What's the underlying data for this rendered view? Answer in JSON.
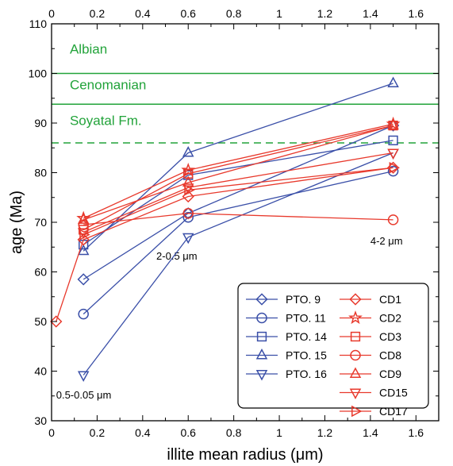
{
  "chart_data": {
    "type": "line",
    "xlabel": "illite mean radius (μm)",
    "ylabel": "age (Ma)",
    "xlim": [
      0,
      1.7
    ],
    "ylim": [
      30,
      110
    ],
    "x_ticks": [
      "0",
      "0.2",
      "0.4",
      "0.6",
      "0.8",
      "1",
      "1.2",
      "1.4",
      "1.6"
    ],
    "x_tick_values": [
      0,
      0.2,
      0.4,
      0.6,
      0.8,
      1.0,
      1.2,
      1.4,
      1.6
    ],
    "y_ticks": [
      "30",
      "40",
      "50",
      "60",
      "70",
      "80",
      "90",
      "100",
      "110"
    ],
    "y_tick_values": [
      30,
      40,
      50,
      60,
      70,
      80,
      90,
      100,
      110
    ],
    "grid": false,
    "legend_placement": "bottom-right",
    "colors": {
      "blue": "#3a4fa8",
      "red": "#e8392c",
      "green": "#22a33a"
    },
    "reference_lines": [
      {
        "y": 100,
        "style": "solid"
      },
      {
        "y": 93.8,
        "style": "solid"
      },
      {
        "y": 86,
        "style": "dashed"
      }
    ],
    "annotations": [
      {
        "text": "Albian",
        "x": 0.08,
        "y": 104,
        "color": "green"
      },
      {
        "text": "Cenomanian",
        "x": 0.08,
        "y": 96.8,
        "color": "green"
      },
      {
        "text": "Soyatal Fm.",
        "x": 0.08,
        "y": 89.6,
        "color": "green"
      },
      {
        "text": "0.5-0.05 μm",
        "x": 0.02,
        "y": 34.5,
        "color": "black"
      },
      {
        "text": "2-0.5 μm",
        "x": 0.46,
        "y": 62.5,
        "color": "black"
      },
      {
        "text": "4-2 μm",
        "x": 1.4,
        "y": 65.5,
        "color": "black"
      }
    ],
    "series": [
      {
        "name": "PTO. 9",
        "color": "blue",
        "marker": "diamond",
        "x": [
          0.14,
          0.6,
          1.5
        ],
        "y": [
          58.5,
          71.8,
          89.5
        ]
      },
      {
        "name": "PTO. 11",
        "color": "blue",
        "marker": "circle",
        "x": [
          0.14,
          0.6,
          1.5
        ],
        "y": [
          51.5,
          71.0,
          80.3
        ]
      },
      {
        "name": "PTO. 14",
        "color": "blue",
        "marker": "square",
        "x": [
          0.14,
          0.6,
          1.5
        ],
        "y": [
          65.5,
          79.5,
          86.5
        ]
      },
      {
        "name": "PTO. 15",
        "color": "blue",
        "marker": "triangle-up",
        "x": [
          0.14,
          0.6,
          1.5
        ],
        "y": [
          64.2,
          84.0,
          98.0
        ]
      },
      {
        "name": "PTO. 16",
        "color": "blue",
        "marker": "triangle-down",
        "x": [
          0.14,
          0.6,
          1.5
        ],
        "y": [
          39.2,
          67.0,
          84.0
        ]
      },
      {
        "name": "CD1",
        "color": "red",
        "marker": "diamond",
        "x": [
          0.02,
          0.14,
          0.6,
          1.5
        ],
        "y": [
          50.0,
          66.5,
          75.2,
          81.0
        ]
      },
      {
        "name": "CD2",
        "color": "red",
        "marker": "star",
        "x": [
          0.14,
          0.6,
          1.5
        ],
        "y": [
          70.8,
          80.5,
          89.8
        ]
      },
      {
        "name": "CD3",
        "color": "red",
        "marker": "square",
        "x": [
          0.14,
          0.6,
          1.5
        ],
        "y": [
          68.5,
          79.8,
          89.5
        ]
      },
      {
        "name": "CD8",
        "color": "red",
        "marker": "circle",
        "x": [
          0.14,
          0.6,
          1.5
        ],
        "y": [
          69.5,
          71.8,
          70.5
        ]
      },
      {
        "name": "CD9",
        "color": "red",
        "marker": "triangle-up",
        "x": [
          0.14,
          0.6,
          1.5
        ],
        "y": [
          70.5,
          78.0,
          89.5
        ]
      },
      {
        "name": "CD15",
        "color": "red",
        "marker": "triangle-down",
        "x": [
          0.14,
          0.6,
          1.5
        ],
        "y": [
          68.0,
          77.0,
          84.0
        ]
      },
      {
        "name": "CD17",
        "color": "red",
        "marker": "triangle-right",
        "x": [
          0.14,
          0.6,
          1.5
        ],
        "y": [
          67.5,
          76.5,
          81.0
        ]
      }
    ]
  }
}
